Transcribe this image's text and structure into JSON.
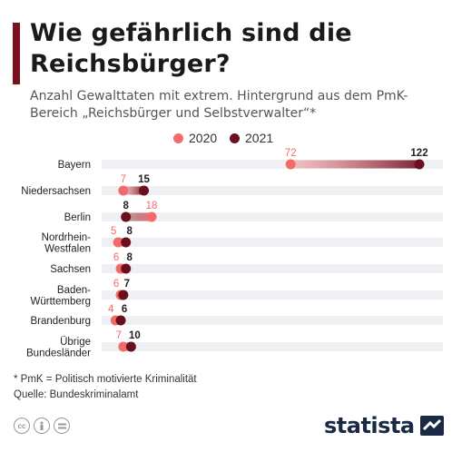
{
  "title": "Wie gefährlich sind die Reichsbürger?",
  "subtitle": "Anzahl Gewalttaten mit extrem. Hintergrund aus dem PmK-Bereich „Reichsbürger und Selbstverwalter“*",
  "legend": [
    {
      "label": "2020",
      "color": "#f26b6b"
    },
    {
      "label": "2021",
      "color": "#6b0f1f"
    }
  ],
  "footnote": "* PmK = Politisch motivierte Kriminalität",
  "source": "Quelle: Bundeskriminalamt",
  "logo": "statista",
  "license_icons": [
    "creative-commons-icon",
    "attribution-icon",
    "no-derivatives-icon"
  ],
  "chart_data": {
    "type": "dumbbell",
    "categories": [
      [
        "Bayern"
      ],
      [
        "Niedersachsen"
      ],
      [
        "Berlin"
      ],
      [
        "Nordrhein-",
        "Westfalen"
      ],
      [
        "Sachsen"
      ],
      [
        "Baden-",
        "Württemberg"
      ],
      [
        "Brandenburg"
      ],
      [
        "Übrige",
        "Bundesländer"
      ]
    ],
    "series": [
      {
        "name": "2020",
        "color": "#f26b6b",
        "values": [
          72,
          7,
          18,
          5,
          6,
          6,
          4,
          7
        ]
      },
      {
        "name": "2021",
        "color": "#6b0f1f",
        "values": [
          122,
          15,
          8,
          8,
          8,
          7,
          6,
          10
        ]
      }
    ],
    "xlim": [
      0,
      122
    ],
    "grid": false
  }
}
